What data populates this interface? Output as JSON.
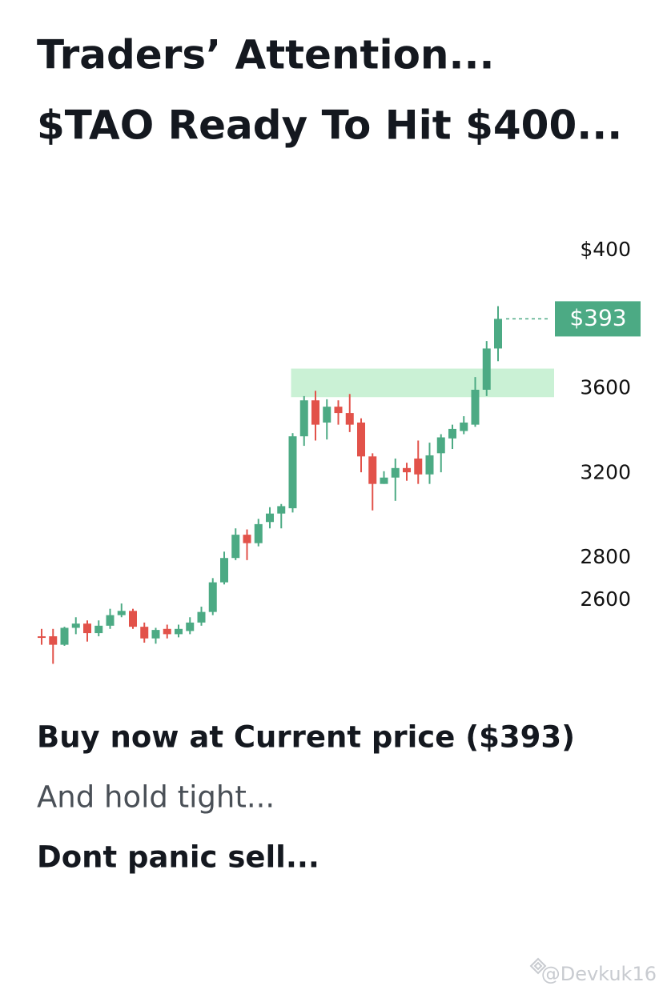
{
  "chart_data": {
    "type": "candlestick",
    "title": [
      "Traders’ Attention...",
      "$TAO Ready To Hit $400..."
    ],
    "target_label": "$400",
    "price_label": "$393",
    "ylim": [
      2260,
      4340
    ],
    "yticks": [
      3600,
      3200,
      2800,
      2600
    ],
    "up_color": "#4caa84",
    "down_color": "#e2524a",
    "zone": [
      3560,
      3695
    ],
    "zone_color": "#c4f0d0",
    "open": [
      2430,
      2430,
      2390,
      2470,
      2490,
      2445,
      2480,
      2530,
      2550,
      2475,
      2420,
      2465,
      2440,
      2455,
      2495,
      2545,
      2685,
      2800,
      2910,
      2870,
      2970,
      3010,
      3035,
      3375,
      3545,
      3440,
      3515,
      3485,
      3440,
      3280,
      3150,
      3180,
      3225,
      3270,
      3195,
      3295,
      3365,
      3400,
      3430,
      3595,
      3790
    ],
    "high": [
      2465,
      2465,
      2475,
      2520,
      2505,
      2505,
      2560,
      2585,
      2560,
      2495,
      2470,
      2485,
      2485,
      2520,
      2570,
      2705,
      2830,
      2940,
      2935,
      2985,
      3040,
      3055,
      3390,
      3565,
      3590,
      3550,
      3545,
      3575,
      3460,
      3295,
      3210,
      3270,
      3250,
      3355,
      3345,
      3385,
      3430,
      3470,
      3655,
      3825,
      3990
    ],
    "low": [
      2390,
      2300,
      2385,
      2440,
      2405,
      2430,
      2465,
      2520,
      2465,
      2400,
      2395,
      2420,
      2425,
      2440,
      2480,
      2530,
      2675,
      2790,
      2790,
      2855,
      2940,
      2940,
      3015,
      3330,
      3355,
      3360,
      3430,
      3395,
      3205,
      3025,
      3150,
      3070,
      3165,
      3150,
      3150,
      3205,
      3315,
      3385,
      3420,
      3565,
      3730
    ],
    "close": [
      2425,
      2390,
      2470,
      2490,
      2445,
      2480,
      2530,
      2550,
      2475,
      2420,
      2460,
      2440,
      2465,
      2495,
      2545,
      2685,
      2800,
      2910,
      2870,
      2960,
      3010,
      3045,
      3375,
      3545,
      3430,
      3515,
      3485,
      3430,
      3280,
      3150,
      3180,
      3225,
      3205,
      3195,
      3285,
      3370,
      3410,
      3440,
      3595,
      3790,
      3930
    ]
  },
  "body": [
    "Buy now at Current price ($393)",
    "And hold tight...",
    "Dont panic sell..."
  ],
  "watermark": "@Devkuk16"
}
